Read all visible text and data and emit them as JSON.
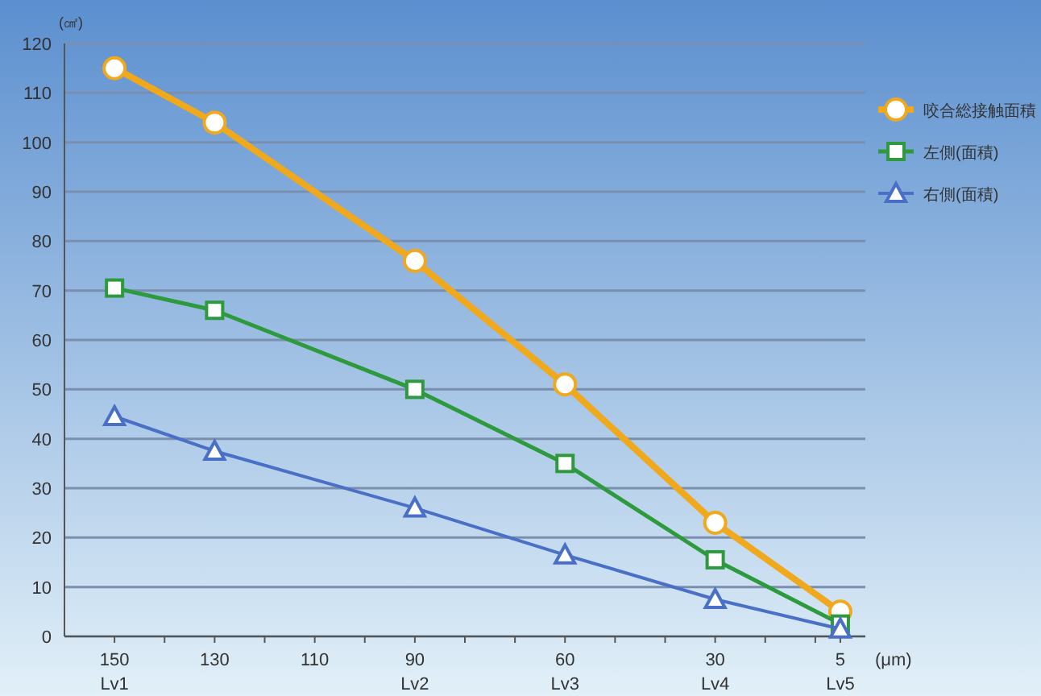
{
  "chart_data": {
    "type": "line",
    "xlabel": "(μm)",
    "ylabel": "(㎠)",
    "x": [
      150,
      130,
      90,
      60,
      30,
      5
    ],
    "series": [
      {
        "name": "咬合総接触面積",
        "color": "#f0a81c",
        "values": [
          115,
          104,
          76,
          51,
          23,
          5
        ],
        "marker": "circle"
      },
      {
        "name": "左側(面積)",
        "color": "#2e9a3e",
        "values": [
          70.5,
          66,
          50,
          35,
          15.5,
          2.5
        ],
        "marker": "square"
      },
      {
        "name": "右側(面積)",
        "color": "#4a6fc7",
        "values": [
          44.5,
          37.5,
          26,
          16.5,
          7.5,
          1.5
        ],
        "marker": "triangle"
      }
    ],
    "xlim": [
      160,
      0
    ],
    "xticks": [
      {
        "value": 150,
        "label": "150\nLv1"
      },
      {
        "value": 140,
        "label": null
      },
      130,
      {
        "value": 120,
        "label": null
      },
      110,
      {
        "value": 100,
        "label": null
      },
      {
        "value": 90,
        "label": "90\nLv2"
      },
      {
        "value": 80,
        "label": null
      },
      {
        "value": 70,
        "label": null
      },
      {
        "value": 60,
        "label": "60\nLv3"
      },
      {
        "value": 50,
        "label": null
      },
      {
        "value": 40,
        "label": null
      },
      {
        "value": 30,
        "label": "30\nLv4"
      },
      {
        "value": 20,
        "label": null
      },
      {
        "value": 10,
        "label": null
      },
      {
        "value": 5,
        "label": "5\nLv5"
      }
    ],
    "ylim": [
      0,
      120
    ],
    "yticks": [
      0,
      10,
      20,
      30,
      40,
      50,
      60,
      70,
      80,
      90,
      100,
      110,
      120
    ],
    "grid": "y",
    "legend": "right",
    "line_style": "solid"
  }
}
